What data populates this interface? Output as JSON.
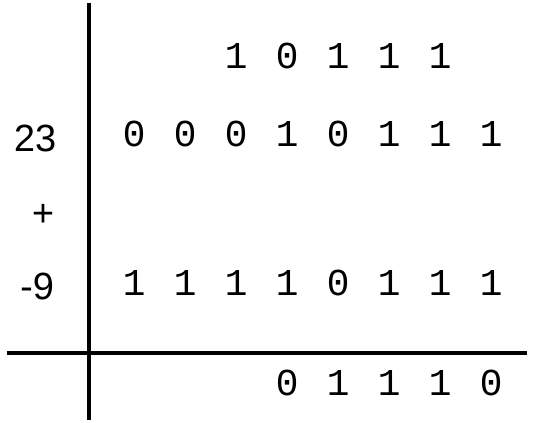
{
  "carry_row": {
    "digits": [
      "1",
      "0",
      "1",
      "1",
      "1"
    ]
  },
  "operand_1": {
    "decimal_label": "23",
    "digits": [
      "0",
      "0",
      "0",
      "1",
      "0",
      "1",
      "1",
      "1"
    ]
  },
  "operator": {
    "symbol": "+"
  },
  "operand_2": {
    "decimal_label": "-9",
    "digits": [
      "1",
      "1",
      "1",
      "1",
      "0",
      "1",
      "1",
      "1"
    ]
  },
  "result_row": {
    "digits": [
      "0",
      "1",
      "1",
      "1",
      "0"
    ]
  }
}
